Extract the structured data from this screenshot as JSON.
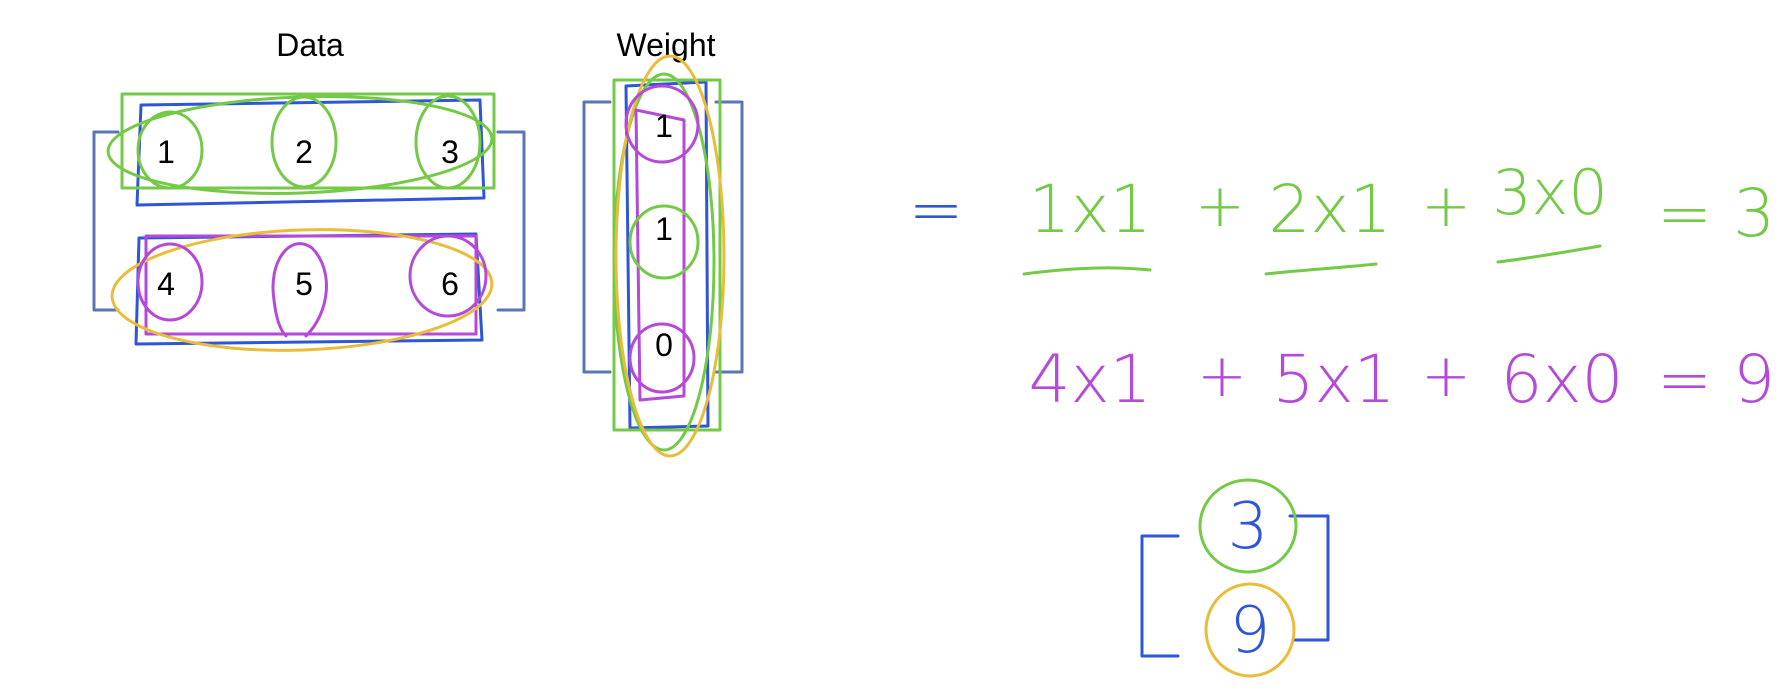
{
  "data_matrix": {
    "title": "Data",
    "rows": [
      [
        "1",
        "2",
        "3"
      ],
      [
        "4",
        "5",
        "6"
      ]
    ]
  },
  "weight_vector": {
    "title": "Weight",
    "values": [
      "1",
      "1",
      "0"
    ]
  },
  "equations": {
    "equals_sign": "=",
    "row1": {
      "terms": [
        "1x1",
        "2x1",
        "3x0"
      ],
      "plus": "+",
      "result": "= 3"
    },
    "row2": {
      "terms": [
        "4x1",
        "5x1",
        "6x0"
      ],
      "plus": "+",
      "result": "= 9"
    }
  },
  "result_vector": {
    "values": [
      "3",
      "9"
    ]
  },
  "colors": {
    "bracket": "#5b74b3",
    "blue_ink": "#2f56d6",
    "green_ink": "#74c947",
    "purple_ink": "#b54ad9",
    "yellow_ink": "#e9bd3a"
  }
}
